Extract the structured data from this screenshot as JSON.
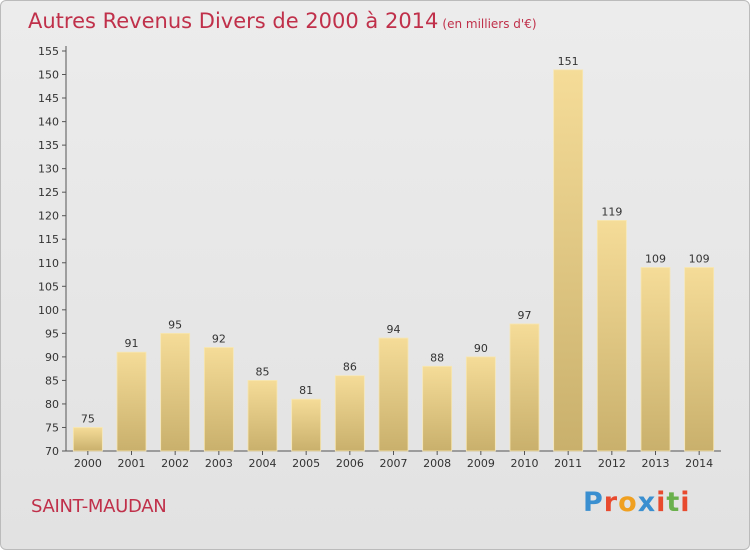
{
  "header": {
    "title": "Autres Revenus Divers de 2000 à 2014",
    "subtitle": "(en milliers d'€)"
  },
  "footer": {
    "place": "SAINT-MAUDAN",
    "logo": "Proxiti"
  },
  "colors": {
    "title": "#c0304a",
    "bar_light": "#f5dc98",
    "bar_dark": "#c9b06c",
    "logo_letters": [
      "#3a8fd0",
      "#e84a2e",
      "#f0a020",
      "#3a8fd0",
      "#e84a2e",
      "#6ab04c",
      "#e84a2e"
    ]
  },
  "chart_data": {
    "type": "bar",
    "categories": [
      "2000",
      "2001",
      "2002",
      "2003",
      "2004",
      "2005",
      "2006",
      "2007",
      "2008",
      "2009",
      "2010",
      "2011",
      "2012",
      "2013",
      "2014"
    ],
    "values": [
      75,
      91,
      95,
      92,
      85,
      81,
      86,
      94,
      88,
      90,
      97,
      151,
      119,
      109,
      109
    ],
    "ylim": [
      70,
      155
    ],
    "yticks": [
      70,
      75,
      80,
      85,
      90,
      95,
      100,
      105,
      110,
      115,
      120,
      125,
      130,
      135,
      140,
      145,
      150,
      155
    ],
    "grid": false,
    "legend": "none"
  }
}
